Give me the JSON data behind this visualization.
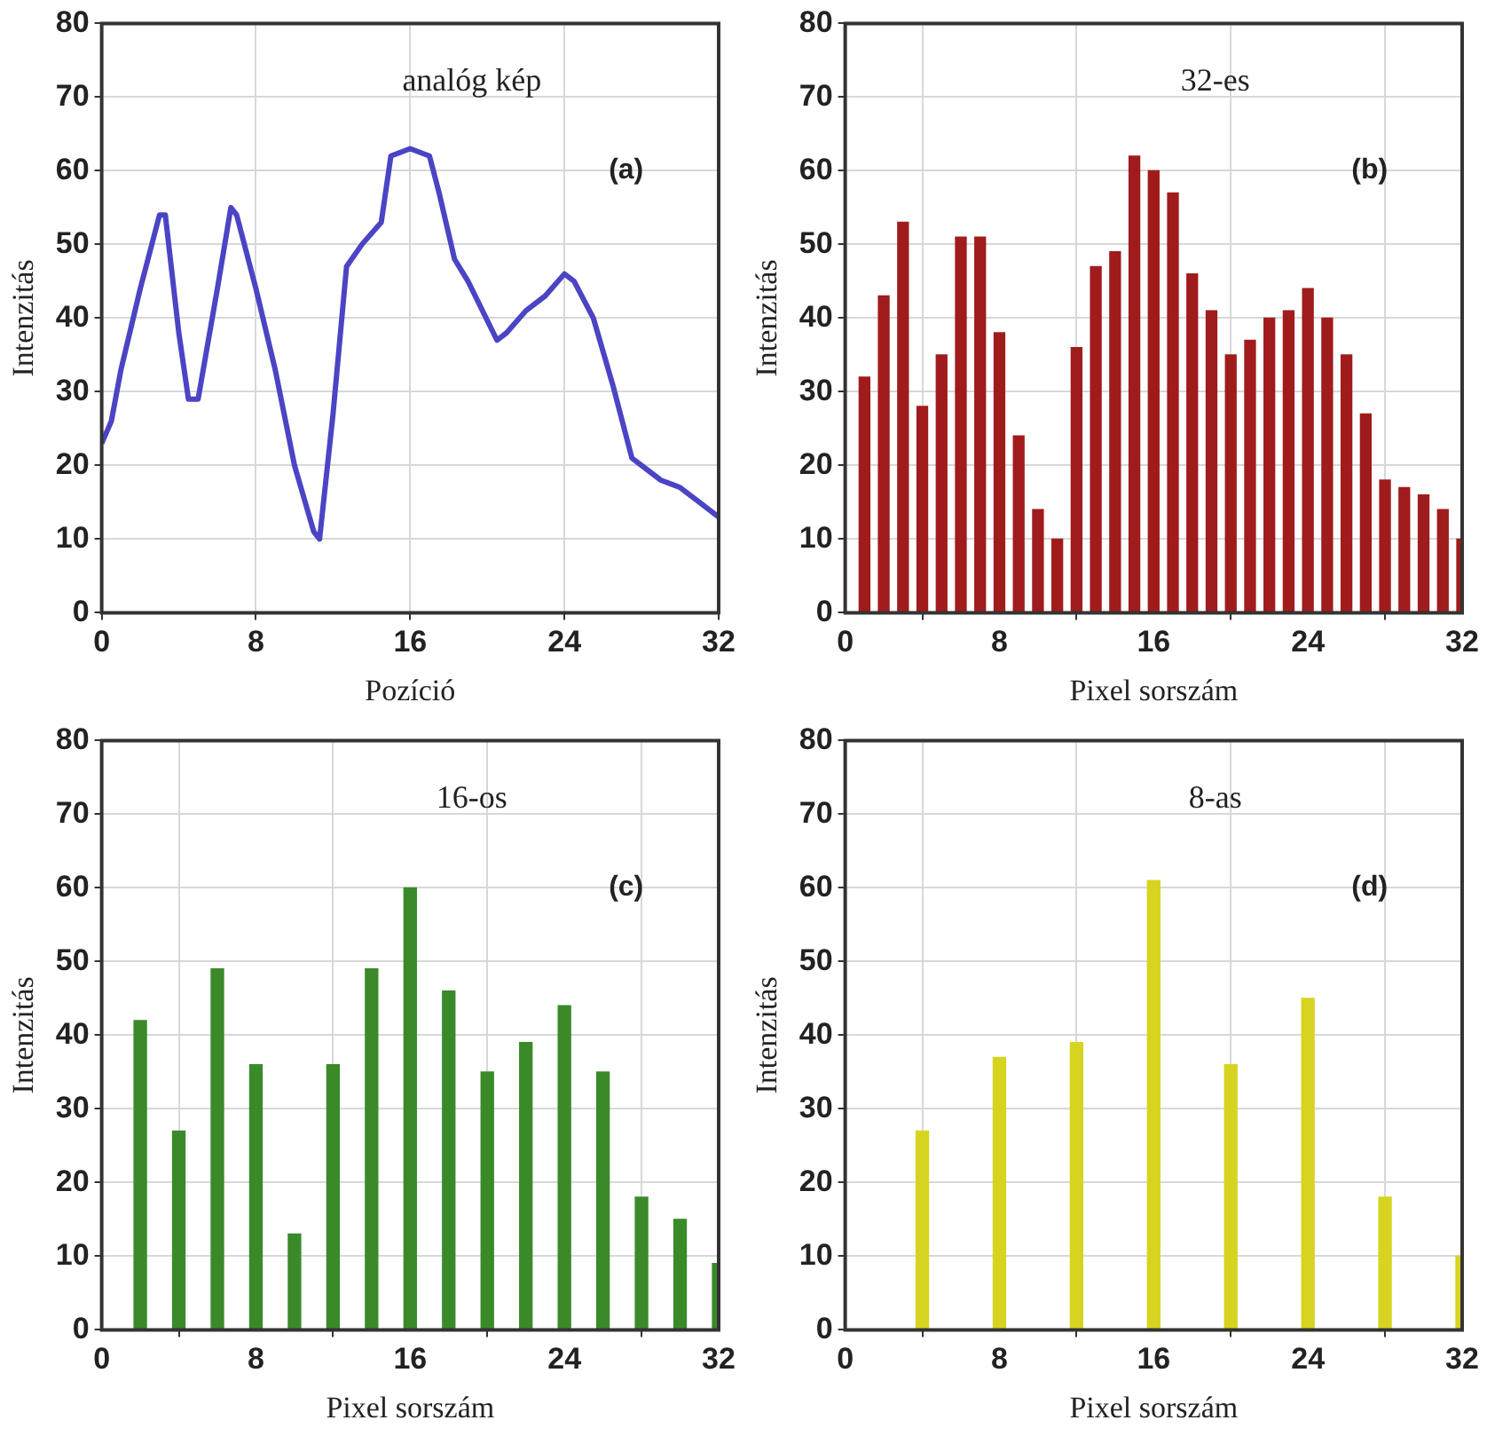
{
  "chart_data": [
    {
      "type": "line",
      "xlabel": "Pozíció",
      "ylabel": "Intenzitás",
      "color": "#4b44c4",
      "annotations": [
        "analóg kép",
        "(a)"
      ],
      "xlim": [
        0,
        32
      ],
      "xticks": [
        0,
        8,
        16,
        24,
        32
      ],
      "ylim": [
        0,
        80
      ],
      "yticks": [
        0,
        10,
        20,
        30,
        40,
        50,
        60,
        70,
        80
      ],
      "grid": true,
      "marker": "none",
      "x": [
        0,
        0.5,
        1,
        2,
        3,
        3.3,
        4,
        4.5,
        5,
        6,
        6.7,
        7,
        8,
        9,
        10,
        11,
        11.3,
        12,
        12.7,
        13.5,
        14.5,
        15,
        16,
        17,
        17.5,
        18.3,
        19,
        20.5,
        21,
        22,
        23,
        24,
        24.5,
        25.5,
        26.5,
        27.5,
        29,
        30,
        31,
        32
      ],
      "values": [
        23,
        26,
        33,
        44,
        54,
        54,
        38,
        29,
        29,
        44,
        55,
        54,
        44,
        33,
        20,
        11,
        10,
        27,
        47,
        50,
        53,
        62,
        63,
        62,
        57,
        48,
        45,
        37,
        38,
        41,
        43,
        46,
        45,
        40,
        31,
        21,
        18,
        17,
        15,
        13
      ]
    },
    {
      "type": "bar",
      "xlabel": "Pixel sorszám",
      "ylabel": "Intenzitás",
      "color": "#a01c1c",
      "annotations": [
        "32-es",
        "(b)"
      ],
      "xlim": [
        0,
        32
      ],
      "xticks": [
        0,
        8,
        16,
        24,
        32
      ],
      "ylim": [
        0,
        80
      ],
      "yticks": [
        0,
        10,
        20,
        30,
        40,
        50,
        60,
        70,
        80
      ],
      "grid": true,
      "x": [
        1,
        2,
        3,
        4,
        5,
        6,
        7,
        8,
        9,
        10,
        11,
        12,
        13,
        14,
        15,
        16,
        17,
        18,
        19,
        20,
        21,
        22,
        23,
        24,
        25,
        26,
        27,
        28,
        29,
        30,
        31,
        32
      ],
      "values": [
        32,
        43,
        53,
        28,
        35,
        51,
        51,
        38,
        24,
        14,
        10,
        36,
        47,
        49,
        62,
        60,
        57,
        46,
        41,
        35,
        37,
        40,
        41,
        44,
        40,
        35,
        27,
        18,
        17,
        16,
        14,
        10
      ]
    },
    {
      "type": "bar",
      "xlabel": "Pixel sorszám",
      "ylabel": "Intenzitás",
      "color": "#3a8a2a",
      "annotations": [
        "16-os",
        "(c)"
      ],
      "xlim": [
        0,
        32
      ],
      "xticks": [
        0,
        8,
        16,
        24,
        32
      ],
      "ylim": [
        0,
        80
      ],
      "yticks": [
        0,
        10,
        20,
        30,
        40,
        50,
        60,
        70,
        80
      ],
      "grid": true,
      "x": [
        2,
        4,
        6,
        8,
        10,
        12,
        14,
        16,
        18,
        20,
        22,
        24,
        26,
        28,
        30,
        32
      ],
      "values": [
        42,
        27,
        49,
        36,
        13,
        36,
        49,
        60,
        46,
        35,
        39,
        44,
        35,
        18,
        15,
        9
      ]
    },
    {
      "type": "bar",
      "xlabel": "Pixel sorszám",
      "ylabel": "Intenzitás",
      "color": "#d6d420",
      "annotations": [
        "8-as",
        "(d)"
      ],
      "xlim": [
        0,
        32
      ],
      "xticks": [
        0,
        8,
        16,
        24,
        32
      ],
      "ylim": [
        0,
        80
      ],
      "yticks": [
        0,
        10,
        20,
        30,
        40,
        50,
        60,
        70,
        80
      ],
      "grid": true,
      "x": [
        4,
        8,
        12,
        16,
        20,
        24,
        28,
        32
      ],
      "values": [
        27,
        37,
        39,
        61,
        36,
        45,
        18,
        10
      ]
    }
  ]
}
